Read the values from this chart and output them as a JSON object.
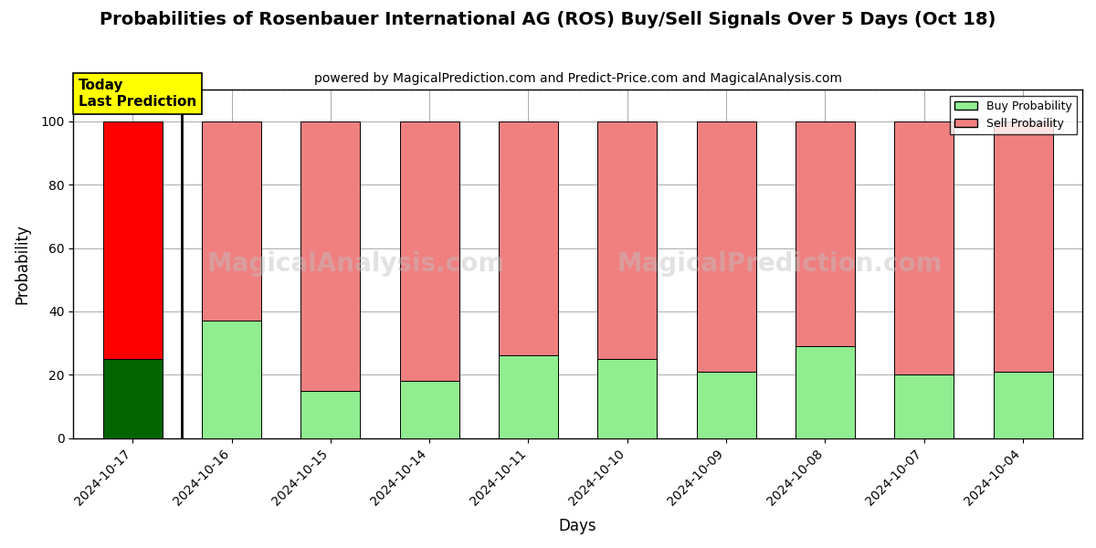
{
  "title": "Probabilities of Rosenbauer International AG (ROS) Buy/Sell Signals Over 5 Days (Oct 18)",
  "subtitle": "powered by MagicalPrediction.com and Predict-Price.com and MagicalAnalysis.com",
  "xlabel": "Days",
  "ylabel": "Probability",
  "categories": [
    "2024-10-17",
    "2024-10-16",
    "2024-10-15",
    "2024-10-14",
    "2024-10-11",
    "2024-10-10",
    "2024-10-09",
    "2024-10-08",
    "2024-10-07",
    "2024-10-04"
  ],
  "buy_values": [
    25,
    37,
    15,
    18,
    26,
    25,
    21,
    29,
    20,
    21
  ],
  "sell_values": [
    75,
    63,
    85,
    82,
    74,
    75,
    79,
    71,
    80,
    79
  ],
  "today_index": 0,
  "buy_color_today": "#006400",
  "sell_color_today": "#FF0000",
  "buy_color_normal": "#90EE90",
  "sell_color_normal": "#F08080",
  "today_label_text": "Today\nLast Prediction",
  "today_label_bg": "#FFFF00",
  "legend_buy": "Buy Probability",
  "legend_sell": "Sell Probaility",
  "ylim": [
    0,
    110
  ],
  "dashed_line_y": 110,
  "watermark_text1": "MagicalAnalysis.com",
  "watermark_text2": "MagicalPrediction.com",
  "watermark_color": "#c0c0c0",
  "watermark_alpha": 0.45,
  "watermark_fontsize": 20,
  "background_color": "#ffffff",
  "grid_color": "#aaaaaa",
  "bar_edge_color": "#000000",
  "bar_width": 0.6
}
